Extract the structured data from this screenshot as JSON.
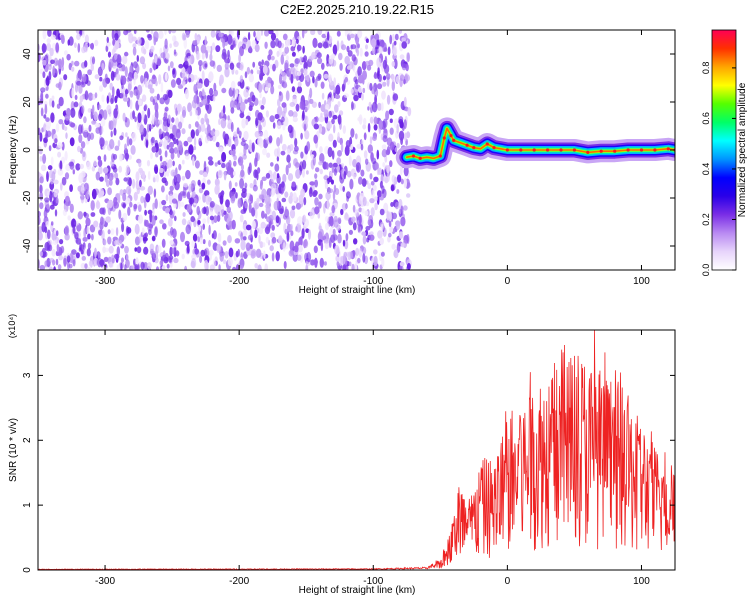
{
  "title": "C2E2.2025.210.19.22.R15",
  "chart_data": [
    {
      "type": "heatmap",
      "xlabel": "Height of straight line (km)",
      "ylabel": "Frequency (Hz)",
      "xlim": [
        -350,
        125
      ],
      "ylim": [
        -50,
        50
      ],
      "x_ticks": [
        -300,
        -200,
        -100,
        0,
        100
      ],
      "y_ticks": [
        -40,
        -20,
        0,
        20,
        40
      ],
      "noise_region_x": [
        -350,
        -73
      ],
      "signal_track": {
        "x": [
          -75,
          -70,
          -65,
          -60,
          -55,
          -50,
          -47,
          -45,
          -42,
          -40,
          -35,
          -30,
          -25,
          -20,
          -15,
          -10,
          -5,
          0,
          10,
          20,
          30,
          40,
          50,
          60,
          70,
          80,
          90,
          100,
          110,
          120,
          125
        ],
        "y": [
          -3,
          -2.5,
          -3.5,
          -3,
          -3.5,
          -2.5,
          5,
          9,
          6,
          4,
          3,
          2,
          1,
          0.5,
          2.5,
          1,
          0.5,
          0,
          0,
          0,
          0,
          0,
          0,
          -1,
          -0.5,
          -0.5,
          0,
          0,
          0,
          0.5,
          0
        ]
      },
      "colorbar": {
        "label": "Normalized spectral amplitude",
        "range": [
          0,
          0.95
        ],
        "ticks": [
          0.0,
          0.2,
          0.4,
          0.6,
          0.8
        ],
        "tick_labels": [
          "0.0",
          "0.2",
          "0.4",
          "0.6",
          "0.8"
        ],
        "colormap": [
          "#ffffff",
          "#e7d4fb",
          "#b98af2",
          "#7a2ee6",
          "#2a00e8",
          "#0000ff",
          "#0094ff",
          "#00ffff",
          "#00ff66",
          "#55ff00",
          "#ffff00",
          "#ffa500",
          "#ff3000",
          "#ff0055"
        ]
      },
      "grid": false
    },
    {
      "type": "line",
      "xlabel": "Height of straight line (km)",
      "ylabel": "SNR (10 * v/v)",
      "y_multiplier": "(x10⁴)",
      "xlim": [
        -350,
        125
      ],
      "ylim": [
        0,
        3.7
      ],
      "x_ticks": [
        -300,
        -200,
        -100,
        0,
        100
      ],
      "y_ticks": [
        0,
        1,
        2,
        3
      ],
      "series": [
        {
          "color": "#ee2222",
          "x": [
            -350,
            -100,
            -60,
            -50,
            -45,
            -40,
            -35,
            -30,
            -25,
            -20,
            -15,
            -10,
            -5,
            0,
            10,
            20,
            30,
            40,
            50,
            60,
            70,
            80,
            90,
            100,
            110,
            120,
            125
          ],
          "y": [
            0.01,
            0.015,
            0.03,
            0.12,
            0.3,
            0.6,
            1.0,
            0.7,
            0.9,
            1.1,
            1.2,
            1.1,
            1.4,
            1.6,
            1.8,
            2.0,
            2.1,
            2.3,
            2.4,
            2.2,
            2.1,
            2.0,
            1.8,
            1.6,
            1.3,
            1.2,
            1.5
          ],
          "peak": {
            "x": 65,
            "y": 3.7
          }
        }
      ],
      "grid": false
    }
  ]
}
